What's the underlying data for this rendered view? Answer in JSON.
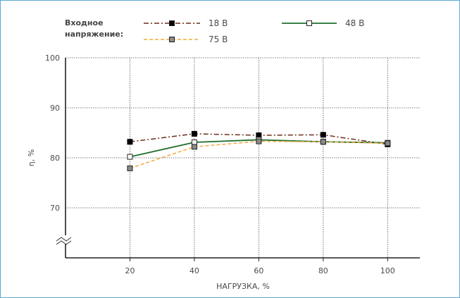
{
  "chart_data": {
    "type": "line",
    "title": "",
    "xlabel": "НАГРУЗКА, %",
    "ylabel": "η, %",
    "legend_title": "Входное напряжение:",
    "legend_position": "top",
    "grid": true,
    "axis_break": "y",
    "x": [
      20,
      40,
      60,
      80,
      100
    ],
    "xticks": [
      "20",
      "40",
      "60",
      "80",
      "100"
    ],
    "xlim": [
      0,
      110
    ],
    "ylim": [
      60,
      100
    ],
    "yticks": [
      "70",
      "80",
      "90",
      "100"
    ],
    "series": [
      {
        "name": "18 В",
        "values": [
          83.2,
          84.8,
          84.5,
          84.6,
          82.7
        ],
        "color": "#6b2e1a",
        "marker": "square-black",
        "line": "dash-dot"
      },
      {
        "name": "48 В",
        "values": [
          80.2,
          83.1,
          83.6,
          83.2,
          83.0
        ],
        "color": "#1f6e2e",
        "marker": "square-white",
        "line": "solid"
      },
      {
        "name": "75 В",
        "values": [
          77.9,
          82.2,
          83.3,
          83.2,
          82.9
        ],
        "color": "#f2a93b",
        "marker": "square-gray",
        "line": "dashed"
      }
    ]
  }
}
